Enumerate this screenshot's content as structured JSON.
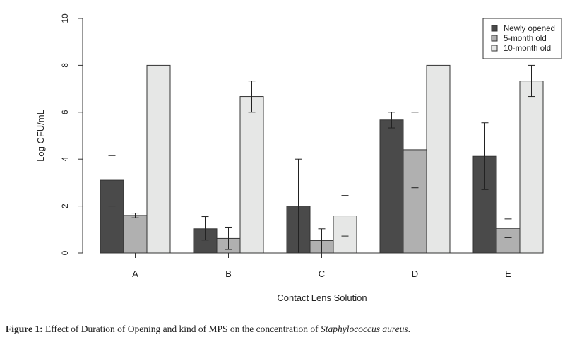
{
  "chart_data": {
    "type": "bar",
    "title": "",
    "xlabel": "Contact Lens Solution",
    "ylabel": "Log CFU/mL",
    "ylim": [
      0,
      10
    ],
    "yticks": [
      "0",
      "2",
      "4",
      "6",
      "8",
      "10"
    ],
    "categories": [
      "A",
      "B",
      "C",
      "D",
      "E"
    ],
    "legend_position": "top-right",
    "grid": false,
    "series": [
      {
        "name": "Newly opened",
        "color": "#4a4a4a",
        "values": [
          3.1,
          1.03,
          2.0,
          5.67,
          4.12
        ],
        "err_low": [
          2.0,
          0.55,
          0.0,
          5.33,
          2.7
        ],
        "err_high": [
          4.15,
          1.55,
          4.0,
          6.0,
          5.55
        ]
      },
      {
        "name": "5-month old",
        "color": "#b0b0b0",
        "values": [
          1.6,
          0.62,
          0.53,
          4.4,
          1.05
        ],
        "err_low": [
          1.5,
          0.15,
          0.0,
          2.78,
          0.65
        ],
        "err_high": [
          1.7,
          1.1,
          1.03,
          6.0,
          1.45
        ]
      },
      {
        "name": "10-month old",
        "color": "#e6e7e6",
        "values": [
          8.0,
          6.67,
          1.58,
          8.0,
          7.33
        ],
        "err_low": [
          8.0,
          6.0,
          0.72,
          8.0,
          6.67
        ],
        "err_high": [
          8.0,
          7.33,
          2.45,
          8.0,
          8.0
        ]
      }
    ]
  },
  "caption": {
    "label": "Figure 1:",
    "text": " Effect of Duration of Opening and kind of MPS on the concentration of ",
    "species": "Staphylococcus aureus",
    "end": "."
  }
}
